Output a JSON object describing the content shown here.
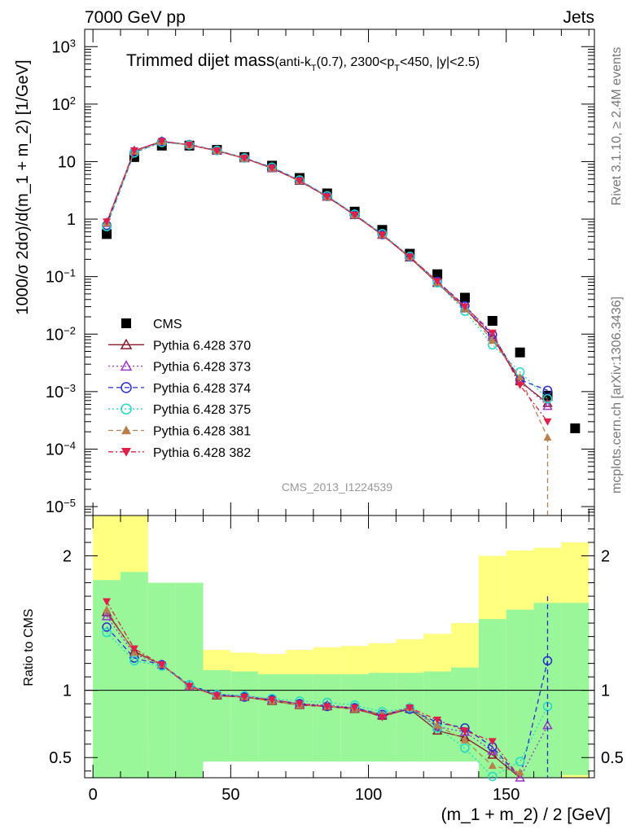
{
  "header": {
    "left": "7000 GeV pp",
    "right": "Jets"
  },
  "side_labels": {
    "rivet": "Rivet 3.1.10, ≥ 2.4M events",
    "mcplots": "mcplots.cern.ch [arXiv:1306.3436]"
  },
  "analysis_id": "CMS_2013_I1224539",
  "chart_data": {
    "type": "line",
    "title": {
      "main": "Trimmed dijet mass",
      "sub": [
        {
          "t": "(anti-k"
        },
        {
          "t": "T",
          "sub": true
        },
        {
          "t": "(0.7), 2300<p"
        },
        {
          "t": "T",
          "sub": true
        },
        {
          "t": "<450, |y|<2.5)"
        }
      ]
    },
    "xlabel": "(m_1 + m_2) / 2 [GeV]",
    "ylabel": "1000/σ 2dσ)/d(m_1 + m_2) [1/GeV]",
    "ratio_ylabel": "Ratio to CMS",
    "xlim": [
      -3,
      182
    ],
    "ylim": [
      7e-06,
      2000
    ],
    "yscale": "log",
    "ratio_ylim": [
      0.35,
      2.3
    ],
    "x_ticks": [
      "0",
      "50",
      "100",
      "150"
    ],
    "y_ticks": [
      "10",
      "1",
      "10"
    ],
    "y_tick_exponents": [
      "3",
      "2",
      "",
      "",
      "−1",
      "−2",
      "−3",
      "−4",
      "−5"
    ],
    "ratio_ticks": [
      "2",
      "1",
      "0.5"
    ],
    "legend_position": "middle-left",
    "x": [
      5,
      15,
      25,
      35,
      45,
      55,
      65,
      75,
      85,
      95,
      105,
      115,
      125,
      135,
      145,
      155,
      165,
      175
    ],
    "series": [
      {
        "name": "CMS",
        "color": "#000000",
        "marker": "square",
        "values": [
          0.55,
          12,
          19,
          19,
          16,
          12,
          8.5,
          5.2,
          2.8,
          1.35,
          0.65,
          0.25,
          0.11,
          0.043,
          0.017,
          0.0048,
          0.00085,
          0.00023
        ],
        "band_inner": [
          [
            0.35,
            1.82
          ],
          [
            0.35,
            1.88
          ],
          [
            0.35,
            1.8
          ],
          [
            0.35,
            1.8
          ],
          [
            0.47,
            1.15
          ],
          [
            0.47,
            1.14
          ],
          [
            0.47,
            1.12
          ],
          [
            0.47,
            1.12
          ],
          [
            0.47,
            1.12
          ],
          [
            0.47,
            1.12
          ],
          [
            0.47,
            1.13
          ],
          [
            0.47,
            1.13
          ],
          [
            0.47,
            1.14
          ],
          [
            0.47,
            1.17
          ],
          [
            0.35,
            1.53
          ],
          [
            0.35,
            1.6
          ],
          [
            0.35,
            1.65
          ],
          [
            0.37,
            1.65
          ]
        ],
        "band_outer": [
          [
            0.35,
            2.3
          ],
          [
            0.35,
            2.3
          ],
          [
            0.59,
            1.75
          ],
          [
            0.71,
            1.62
          ],
          [
            0.8,
            1.3
          ],
          [
            0.79,
            1.28
          ],
          [
            0.78,
            1.27
          ],
          [
            0.77,
            1.3
          ],
          [
            0.76,
            1.32
          ],
          [
            0.75,
            1.33
          ],
          [
            0.74,
            1.35
          ],
          [
            0.73,
            1.38
          ],
          [
            0.71,
            1.42
          ],
          [
            0.67,
            1.5
          ],
          [
            0.35,
            2.0
          ],
          [
            0.35,
            2.04
          ],
          [
            0.35,
            2.06
          ],
          [
            0.35,
            2.1
          ]
        ]
      },
      {
        "name": "Pythia 6.428 370",
        "color": "#8b1a2a",
        "marker": "open-triangle-up",
        "dash": "",
        "values": [
          0.87,
          15.5,
          22.5,
          19.5,
          15.4,
          11.4,
          7.65,
          4.6,
          2.45,
          1.17,
          0.53,
          0.215,
          0.077,
          0.028,
          0.0088,
          0.0015,
          0.00063,
          null
        ],
        "ratio": [
          1.58,
          1.29,
          1.19,
          1.03,
          0.96,
          0.95,
          0.92,
          0.89,
          0.88,
          0.86,
          0.81,
          0.86,
          0.7,
          0.65,
          0.52,
          0.31,
          null,
          null
        ]
      },
      {
        "name": "Pythia 6.428 373",
        "color": "#9a34cc",
        "marker": "open-triangle-up",
        "dash": "2,3",
        "values": [
          0.85,
          15.2,
          22.3,
          19.6,
          15.6,
          11.5,
          7.75,
          4.7,
          2.5,
          1.2,
          0.54,
          0.22,
          0.08,
          0.03,
          0.0095,
          0.0016,
          0.00056,
          null
        ],
        "ratio": [
          1.55,
          1.27,
          1.19,
          1.03,
          0.97,
          0.96,
          0.93,
          0.9,
          0.89,
          0.87,
          0.82,
          0.87,
          0.73,
          0.69,
          0.55,
          0.35,
          0.74,
          null
        ]
      },
      {
        "name": "Pythia 6.428 374",
        "color": "#2a2ad0",
        "marker": "open-circle",
        "dash": "6,4",
        "values": [
          0.78,
          14.5,
          22.2,
          19.8,
          15.7,
          11.6,
          7.9,
          4.75,
          2.5,
          1.2,
          0.54,
          0.22,
          0.083,
          0.031,
          0.0098,
          0.0016,
          0.00105,
          null
        ],
        "ratio": [
          1.47,
          1.24,
          1.19,
          1.04,
          0.97,
          0.95,
          0.93,
          0.9,
          0.88,
          0.87,
          0.82,
          0.86,
          0.76,
          0.72,
          0.58,
          0.33,
          1.22,
          null
        ]
      },
      {
        "name": "Pythia 6.428 375",
        "color": "#22d8c8",
        "marker": "open-circle",
        "dash": "2,3",
        "values": [
          0.74,
          14.2,
          21.5,
          19.6,
          15.7,
          11.6,
          8.0,
          4.8,
          2.55,
          1.22,
          0.56,
          0.225,
          0.078,
          0.025,
          0.0065,
          0.0022,
          0.00075,
          null
        ],
        "ratio": [
          1.43,
          1.22,
          1.18,
          1.04,
          0.97,
          0.96,
          0.94,
          0.92,
          0.91,
          0.89,
          0.84,
          0.87,
          0.72,
          0.57,
          0.36,
          0.47,
          0.88,
          null
        ]
      },
      {
        "name": "Pythia 6.428 381",
        "color": "#b8804c",
        "marker": "filled-triangle-up",
        "dash": "6,4",
        "values": [
          0.85,
          15.0,
          22.3,
          19.5,
          15.5,
          11.4,
          7.7,
          4.6,
          2.45,
          1.17,
          0.53,
          0.22,
          0.079,
          0.028,
          0.0077,
          0.0018,
          0.00016,
          null
        ],
        "ratio": [
          1.6,
          1.28,
          1.19,
          1.03,
          0.96,
          0.95,
          0.92,
          0.89,
          0.88,
          0.86,
          0.82,
          0.87,
          0.74,
          0.63,
          0.44,
          0.39,
          null,
          null
        ]
      },
      {
        "name": "Pythia 6.428 382",
        "color": "#e0204a",
        "marker": "filled-triangle-down",
        "dash": "6,3,2,3",
        "values": [
          0.9,
          15.6,
          22.6,
          19.6,
          15.4,
          11.5,
          7.7,
          4.6,
          2.45,
          1.18,
          0.53,
          0.22,
          0.083,
          0.03,
          0.0105,
          0.0013,
          0.0003,
          null
        ],
        "ratio": [
          1.66,
          1.31,
          1.19,
          1.03,
          0.96,
          0.95,
          0.93,
          0.9,
          0.88,
          0.87,
          0.8,
          0.87,
          0.78,
          0.7,
          0.62,
          0.27,
          null,
          null
        ]
      }
    ]
  }
}
